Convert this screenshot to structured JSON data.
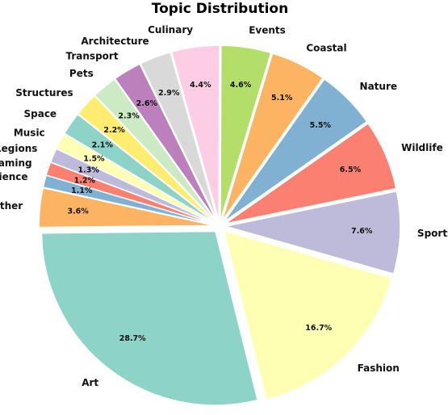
{
  "chart_data": {
    "type": "pie",
    "title": "Topic Distribution",
    "slices": [
      {
        "label": "Art",
        "value": 28.7,
        "pct_label": "28.7%",
        "color": "#8dd3c7"
      },
      {
        "label": "Fashion",
        "value": 16.7,
        "pct_label": "16.7%",
        "color": "#ffffb3"
      },
      {
        "label": "Sports",
        "value": 7.6,
        "pct_label": "7.6%",
        "color": "#bebada"
      },
      {
        "label": "Wildlife",
        "value": 6.5,
        "pct_label": "6.5%",
        "color": "#fb8072"
      },
      {
        "label": "Nature",
        "value": 5.5,
        "pct_label": "5.5%",
        "color": "#80b1d3"
      },
      {
        "label": "Coastal",
        "value": 5.1,
        "pct_label": "5.1%",
        "color": "#fdb462"
      },
      {
        "label": "Events",
        "value": 4.6,
        "pct_label": "4.6%",
        "color": "#b3de69"
      },
      {
        "label": "Culinary",
        "value": 4.4,
        "pct_label": "4.4%",
        "color": "#fccde5"
      },
      {
        "label": "Architecture",
        "value": 2.9,
        "pct_label": "2.9%",
        "color": "#d9d9d9"
      },
      {
        "label": "Transport",
        "value": 2.6,
        "pct_label": "2.6%",
        "color": "#bc80bd"
      },
      {
        "label": "Pets",
        "value": 2.3,
        "pct_label": "2.3%",
        "color": "#ccebc5"
      },
      {
        "label": "Structures",
        "value": 2.2,
        "pct_label": "2.2%",
        "color": "#ffed6f"
      },
      {
        "label": "Space",
        "value": 2.1,
        "pct_label": "2.1%",
        "color": "#8dd3c7"
      },
      {
        "label": "Music",
        "value": 1.5,
        "pct_label": "1.5%",
        "color": "#ffffb3"
      },
      {
        "label": "Regions",
        "value": 1.3,
        "pct_label": "1.3%",
        "color": "#bebada"
      },
      {
        "label": "Gaming",
        "value": 1.2,
        "pct_label": "1.2%",
        "color": "#fb8072"
      },
      {
        "label": "Science",
        "value": 1.1,
        "pct_label": "1.1%",
        "color": "#80b1d3"
      },
      {
        "label": "Other",
        "value": 3.6,
        "pct_label": "3.6%",
        "color": "#fdb462"
      }
    ],
    "slice_edge_color": "#ffffff",
    "start": "Art slice begins at the left side, slices run counterclockwise",
    "all_slices_exploded": true,
    "legend": "none (labels placed outside slices)"
  }
}
